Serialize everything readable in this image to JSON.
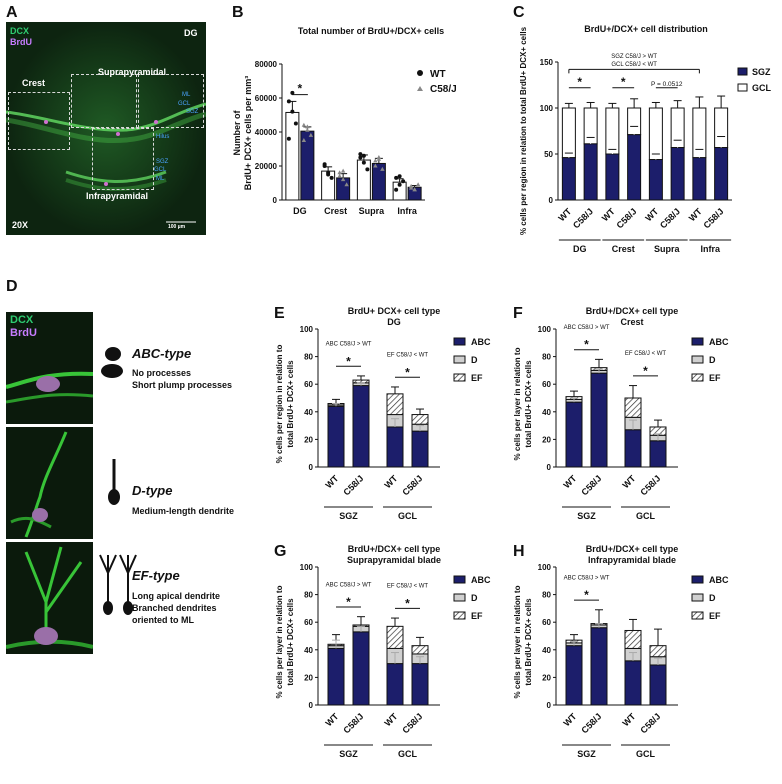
{
  "panels": {
    "A": {
      "letter": "A",
      "dcx": "DCX",
      "brdu": "BrdU",
      "dg": "DG",
      "crest": "Crest",
      "supra": "Suprapyramidal",
      "infra": "Infrapyramidal",
      "ml1": "ML",
      "gcl1": "GCL",
      "sgz1": "SGZ",
      "hilus": "Hilus",
      "sgz2": "SGZ",
      "gcl2": "GCL",
      "ml2": "ML",
      "mag": "20X",
      "scale": "100 µm"
    },
    "D": {
      "letter": "D",
      "dcx": "DCX",
      "brdu": "BrdU",
      "types": [
        {
          "title": "ABC-type",
          "desc": [
            "No processes",
            "Short plump processes"
          ]
        },
        {
          "title": "D-type",
          "desc": [
            "Medium-length dendrite"
          ]
        },
        {
          "title": "EF-type",
          "desc": [
            "Long apical dendrite",
            "Branched dendrites",
            "oriented to ML"
          ]
        }
      ]
    },
    "E_letter": "E",
    "F_letter": "F",
    "G_letter": "G",
    "H_letter": "H",
    "B_letter": "B",
    "C_letter": "C"
  },
  "chart_data": [
    {
      "id": "B",
      "type": "bar",
      "title": "Total number of BrdU+/DCX+ cells",
      "ylabel_lines": [
        "Number of",
        "BrdU+ DCX+ cells per mm³"
      ],
      "yticks": [
        "0",
        "20000",
        "40000",
        "60000",
        "80000"
      ],
      "ylim": [
        0,
        80000
      ],
      "categories": [
        "DG",
        "Crest",
        "Supra",
        "Infra"
      ],
      "legend": [
        {
          "label": "WT",
          "marker": "circle"
        },
        {
          "label": "C58/J",
          "marker": "triangle"
        }
      ],
      "series": [
        {
          "name": "WT",
          "color": "#ffffff",
          "values": [
            51500,
            17000,
            23500,
            10500
          ],
          "err": [
            6500,
            2500,
            3000,
            2000
          ],
          "points": [
            [
              58000,
              52000,
              45000,
              36000,
              63000
            ],
            [
              20000,
              16000,
              13000,
              21000,
              15000
            ],
            [
              27000,
              22000,
              18000,
              25000,
              26000
            ],
            [
              13000,
              9000,
              11000,
              6000,
              14000
            ]
          ]
        },
        {
          "name": "C58/J",
          "color": "#1c1e6b",
          "values": [
            40500,
            13000,
            21500,
            7500
          ],
          "err": [
            2500,
            2500,
            3000,
            1000
          ],
          "points": [
            [
              44000,
              41000,
              38000,
              35000,
              43000
            ],
            [
              16000,
              12000,
              9000,
              14000,
              17000
            ],
            [
              23000,
              25000,
              18000,
              20000,
              24000
            ],
            [
              8000,
              6000,
              9000,
              7000,
              6000
            ]
          ]
        }
      ],
      "sig": [
        {
          "cat": 0,
          "label": "*"
        }
      ]
    },
    {
      "id": "C",
      "type": "bar",
      "title": "BrdU+/DCX+ cell distribution",
      "ylabel": "% cells per region in relation to total BrdU+ DCX+ cells",
      "yticks": [
        "0",
        "50",
        "100",
        "150"
      ],
      "ylim": [
        0,
        150
      ],
      "groups": [
        "DG",
        "Crest",
        "Supra",
        "Infra"
      ],
      "xlabels": [
        "WT",
        "C58/J",
        "WT",
        "C58/J",
        "WT",
        "C58/J",
        "WT",
        "C58/J"
      ],
      "sgz": [
        46,
        61,
        50,
        71,
        44,
        57,
        46,
        57
      ],
      "sgz_err": [
        5,
        7,
        5,
        9,
        6,
        8,
        9,
        12
      ],
      "total_err": [
        5,
        6,
        5,
        10,
        6,
        8,
        12,
        13
      ],
      "legend": [
        {
          "label": "SGZ",
          "color": "#1c1e6b"
        },
        {
          "label": "GCL",
          "color": "#ffffff"
        }
      ],
      "annot_lines": [
        "SGZ C58/J > WT",
        "GCL C58/J < WT"
      ],
      "sig": [
        {
          "pair": 0,
          "label": "*"
        },
        {
          "pair": 1,
          "label": "*"
        },
        {
          "pair": 2,
          "label": "P = 0.0512"
        }
      ]
    },
    {
      "id": "E",
      "type": "bar",
      "title_lines": [
        "BrdU+ DCX+ cell type",
        "DG"
      ],
      "ylabel_lines": [
        "% cells per region in relation to",
        "total BrdU+ DCX+ cells"
      ],
      "yticks": [
        "0",
        "20",
        "40",
        "60",
        "80",
        "100"
      ],
      "ylim": [
        0,
        100
      ],
      "xlabels": [
        "WT",
        "C58/J",
        "WT",
        "C58/J"
      ],
      "groups": [
        "SGZ",
        "GCL"
      ],
      "abc": [
        44,
        59,
        29,
        26
      ],
      "d": [
        1,
        2,
        9,
        5
      ],
      "ef": [
        1,
        2,
        15,
        7
      ],
      "err_abc": [
        2,
        2,
        6,
        4
      ],
      "err_total": [
        3,
        3,
        5,
        4
      ],
      "legend": [
        "ABC",
        "D",
        "EF"
      ],
      "annot": [
        {
          "group": 0,
          "label": "ABC C58/J > WT"
        },
        {
          "group": 1,
          "label": "EF C58/J < WT"
        }
      ],
      "sig": [
        "*",
        "*"
      ]
    },
    {
      "id": "F",
      "type": "bar",
      "title_lines": [
        "BrdU+/DCX+ cell type",
        "Crest"
      ],
      "ylabel_lines": [
        "% cells per layer in relation to",
        "total BrdU+ DCX+ cells"
      ],
      "yticks": [
        "0",
        "20",
        "40",
        "60",
        "80",
        "100"
      ],
      "ylim": [
        0,
        100
      ],
      "xlabels": [
        "WT",
        "C58/J",
        "WT",
        "C58/J"
      ],
      "groups": [
        "SGZ",
        "GCL"
      ],
      "abc": [
        47,
        68,
        27,
        19
      ],
      "d": [
        2,
        2,
        9,
        4
      ],
      "ef": [
        2,
        2,
        14,
        6
      ],
      "err_abc": [
        3,
        3,
        7,
        5
      ],
      "err_total": [
        4,
        6,
        9,
        5
      ],
      "legend": [
        "ABC",
        "D",
        "EF"
      ],
      "annot": [
        {
          "group": 0,
          "label": "ABC C58/J > WT"
        },
        {
          "group": 1,
          "label": "EF C58/J < WT"
        }
      ],
      "sig": [
        "*",
        "*"
      ]
    },
    {
      "id": "G",
      "type": "bar",
      "title_lines": [
        "BrdU+/DCX+ cell type",
        "Suprapyramidal blade"
      ],
      "ylabel_lines": [
        "% cells per layer in relation to",
        "total BrdU+ DCX+ cells"
      ],
      "yticks": [
        "0",
        "20",
        "40",
        "60",
        "80",
        "100"
      ],
      "ylim": [
        0,
        100
      ],
      "xlabels": [
        "WT",
        "C58/J",
        "WT",
        "C58/J"
      ],
      "groups": [
        "SGZ",
        "GCL"
      ],
      "abc": [
        41,
        53,
        30,
        30
      ],
      "d": [
        2,
        4,
        11,
        7
      ],
      "ef": [
        1,
        1,
        16,
        6
      ],
      "err_abc": [
        6,
        4,
        8,
        5
      ],
      "err_total": [
        7,
        6,
        6,
        6
      ],
      "legend": [
        "ABC",
        "D",
        "EF"
      ],
      "annot": [
        {
          "group": 0,
          "label": "ABC C58/J > WT"
        },
        {
          "group": 1,
          "label": "EF C58/J < WT"
        }
      ],
      "sig": [
        "*",
        "*"
      ]
    },
    {
      "id": "H",
      "type": "bar",
      "title_lines": [
        "BrdU+/DCX+ cell type",
        "Infrapyramidal blade"
      ],
      "ylabel_lines": [
        "% cells per layer in relation to",
        "total BrdU+ DCX+ cells"
      ],
      "yticks": [
        "0",
        "20",
        "40",
        "60",
        "80",
        "100"
      ],
      "ylim": [
        0,
        100
      ],
      "xlabels": [
        "WT",
        "C58/J",
        "WT",
        "C58/J"
      ],
      "groups": [
        "SGZ",
        "GCL"
      ],
      "abc": [
        43,
        56,
        32,
        29
      ],
      "d": [
        2,
        2,
        9,
        6
      ],
      "ef": [
        2,
        1,
        13,
        8
      ],
      "err_abc": [
        3,
        3,
        6,
        5
      ],
      "err_total": [
        4,
        10,
        8,
        12
      ],
      "legend": [
        "ABC",
        "D",
        "EF"
      ],
      "annot": [
        {
          "group": 0,
          "label": "ABC C58/J > WT"
        }
      ],
      "sig": [
        "*"
      ]
    }
  ]
}
